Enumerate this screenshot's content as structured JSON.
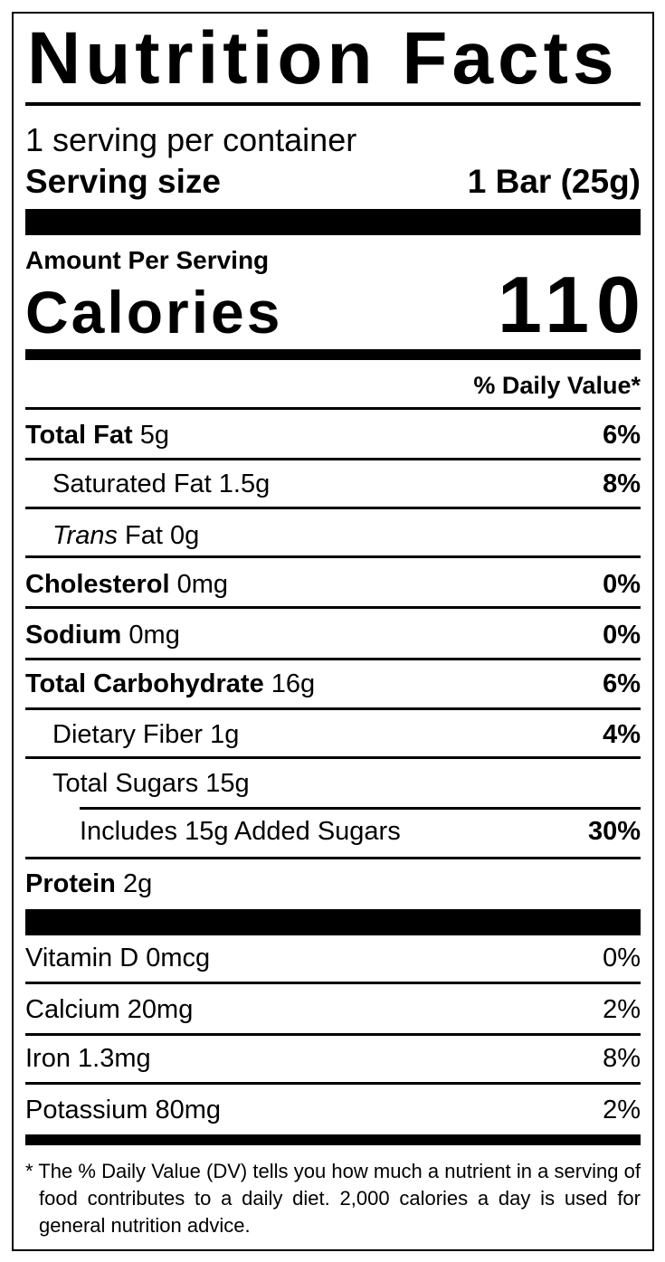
{
  "title": "Nutrition Facts",
  "servings_per_container": "1 serving per container",
  "serving_size_label": "Serving size",
  "serving_size_value": "1 Bar (25g)",
  "amount_per_serving": "Amount Per Serving",
  "calories_label": "Calories",
  "calories_value": "110",
  "dv_header": "% Daily Value*",
  "nutrients": [
    {
      "name": "Total Fat",
      "amount": "5g",
      "dv": "6%"
    },
    {
      "name": "Saturated Fat",
      "amount": "1.5g",
      "dv": "8%"
    },
    {
      "name_italic": "Trans",
      "name": "Fat",
      "amount": "0g",
      "dv": ""
    },
    {
      "name": "Cholesterol",
      "amount": "0mg",
      "dv": "0%"
    },
    {
      "name": "Sodium",
      "amount": "0mg",
      "dv": "0%"
    },
    {
      "name": "Total Carbohydrate",
      "amount": "16g",
      "dv": "6%"
    },
    {
      "name": "Dietary Fiber",
      "amount": "1g",
      "dv": "4%"
    },
    {
      "name": "Total Sugars",
      "amount": "15g",
      "dv": ""
    },
    {
      "name": "Includes 15g Added Sugars",
      "amount": "",
      "dv": "30%"
    },
    {
      "name": "Protein",
      "amount": "2g",
      "dv": ""
    }
  ],
  "micronutrients": [
    {
      "label": "Vitamin D 0mcg",
      "dv": "0%"
    },
    {
      "label": "Calcium 20mg",
      "dv": "2%"
    },
    {
      "label": "Iron 1.3mg",
      "dv": "8%"
    },
    {
      "label": "Potassium 80mg",
      "dv": "2%"
    }
  ],
  "footnote": "* The % Daily Value (DV) tells you how much a nutrient in a serving of food contributes to a daily diet. 2,000 calories a day is used for general nutrition advice."
}
